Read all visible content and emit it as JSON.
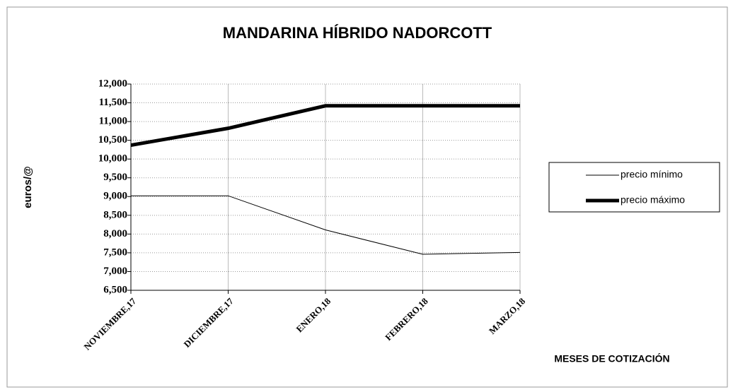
{
  "chart_data": {
    "type": "line",
    "title": "MANDARINA HÍBRIDO NADORCOTT",
    "ylabel": "euros/@",
    "xlabel": "MESES DE COTIZACIÓN",
    "categories": [
      "NOVIEMBRE,17",
      "DICIEMBRE,17",
      "ENERO,18",
      "FEBRERO,18",
      "MARZO,18"
    ],
    "series": [
      {
        "name": "precio mínimo",
        "color": "#000000",
        "values": [
          9.02,
          9.02,
          8.11,
          7.46,
          7.51
        ]
      },
      {
        "name": "precio máximo",
        "color": "#000000",
        "values": [
          10.37,
          10.82,
          11.42,
          11.42,
          11.42
        ]
      }
    ],
    "ylim": [
      6.5,
      12
    ],
    "yticks": [
      {
        "value": 6.5,
        "label": "6,500"
      },
      {
        "value": 7,
        "label": "7,000"
      },
      {
        "value": 7.5,
        "label": "7,500"
      },
      {
        "value": 8,
        "label": "8,000"
      },
      {
        "value": 8.5,
        "label": "8,500"
      },
      {
        "value": 9,
        "label": "9,000"
      },
      {
        "value": 9.5,
        "label": "9,500"
      },
      {
        "value": 10,
        "label": "10,000"
      },
      {
        "value": 10.5,
        "label": "10,500"
      },
      {
        "value": 11,
        "label": "11,000"
      },
      {
        "value": 11.5,
        "label": "11,500"
      },
      {
        "value": 12,
        "label": "12,000"
      }
    ],
    "grid": true,
    "legend": "right"
  }
}
